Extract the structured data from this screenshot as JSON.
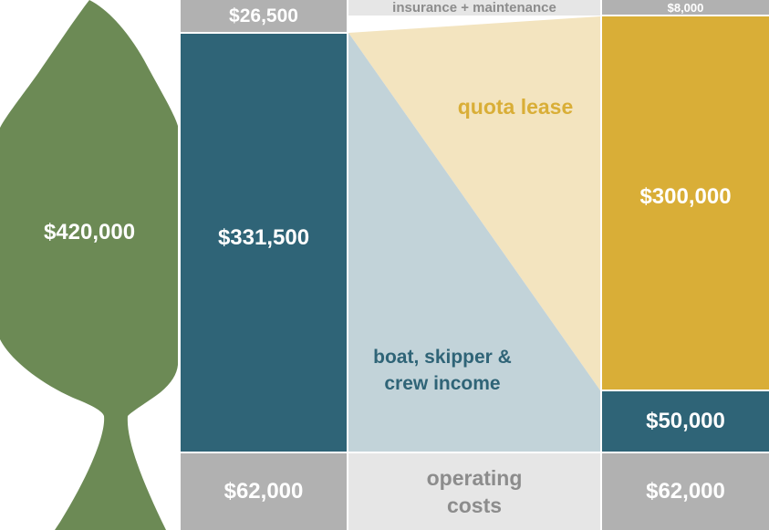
{
  "colors": {
    "fish": "#6c8a55",
    "teal": "#2f6477",
    "gold": "#d9ae37",
    "light_gold": "#f3e4bf",
    "light_blue": "#c2d3d9",
    "gray": "#b1b1b1",
    "light_gray": "#e6e6e6",
    "label_gray": "#8c8c8c",
    "white": "#ffffff"
  },
  "fish": {
    "icon": "fish-silhouette-icon",
    "value": "$420,000"
  },
  "left_column": {
    "top_value": "$26,500",
    "main_value": "$331,500",
    "bottom_value": "$62,000"
  },
  "middle_column": {
    "insurance_label": "insurance + maintenance",
    "quota_label": "quota lease",
    "boat_label_line1": "boat, skipper &",
    "boat_label_line2": "crew income",
    "operating_line1": "operating",
    "operating_line2": "costs"
  },
  "right_column": {
    "top_value": "$8,000",
    "main_value": "$300,000",
    "lower_value": "$50,000",
    "bottom_value": "$62,000"
  }
}
